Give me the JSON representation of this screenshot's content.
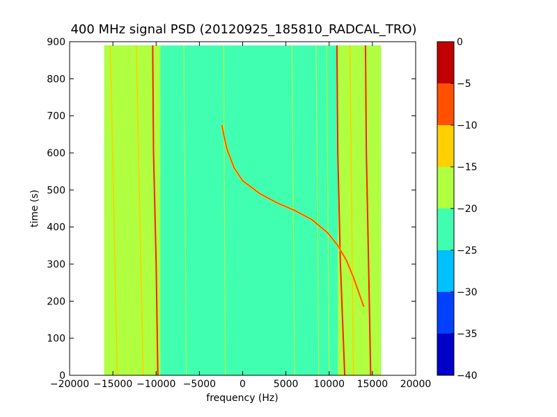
{
  "chart_data": {
    "type": "heatmap",
    "title": "400 MHz signal PSD (20120925_185810_RADCAL_TRO)",
    "xlabel": "frequency (Hz)",
    "ylabel": "time (s)",
    "xlim": [
      -20000,
      20000
    ],
    "ylim": [
      0,
      900
    ],
    "xticks": [
      -20000,
      -15000,
      -10000,
      -5000,
      0,
      5000,
      10000,
      15000,
      20000
    ],
    "xtick_labels": [
      "−20000",
      "−15000",
      "−10000",
      "−5000",
      "0",
      "5000",
      "10000",
      "15000",
      "20000"
    ],
    "yticks": [
      0,
      100,
      200,
      300,
      400,
      500,
      600,
      700,
      800,
      900
    ],
    "ytick_labels": [
      "0",
      "100",
      "200",
      "300",
      "400",
      "500",
      "600",
      "700",
      "800",
      "900"
    ],
    "data_extent": {
      "x": [
        -16000,
        16000
      ],
      "y": [
        0,
        890
      ]
    },
    "background_level_band": [
      -25,
      -20
    ],
    "outer_level_band": [
      -20,
      -15
    ],
    "colorbar": {
      "levels": [
        -40,
        -35,
        -30,
        -25,
        -20,
        -15,
        -10,
        -5,
        0
      ],
      "tick_labels": [
        "−40",
        "−35",
        "−30",
        "−25",
        "−20",
        "−15",
        "−10",
        "−5",
        "0"
      ],
      "colors": [
        "#0000c8",
        "#0040ff",
        "#00c0ff",
        "#40ffb0",
        "#b0ff40",
        "#ffd000",
        "#ff5000",
        "#c00000"
      ]
    },
    "outer_bands": [
      {
        "x": [
          -16000,
          -9500
        ],
        "y": [
          0,
          890
        ]
      },
      {
        "x": [
          11000,
          16000
        ],
        "y": [
          0,
          890
        ]
      }
    ],
    "tones": [
      {
        "level": "peak",
        "color": "#ff2000",
        "points": [
          [
            -9800,
            0
          ],
          [
            -10000,
            300
          ],
          [
            -10300,
            600
          ],
          [
            -10400,
            890
          ]
        ]
      },
      {
        "level": "peak",
        "color": "#ff2000",
        "points": [
          [
            11800,
            0
          ],
          [
            11300,
            300
          ],
          [
            11000,
            600
          ],
          [
            10900,
            890
          ]
        ]
      },
      {
        "level": "peak",
        "color": "#ff2000",
        "points": [
          [
            14800,
            0
          ],
          [
            14600,
            250
          ],
          [
            14300,
            600
          ],
          [
            14200,
            890
          ]
        ]
      },
      {
        "level": "high",
        "color": "#ffd000",
        "points": [
          [
            -11500,
            0
          ],
          [
            -11900,
            450
          ],
          [
            -12300,
            890
          ]
        ]
      },
      {
        "level": "high",
        "color": "#ffd000",
        "points": [
          [
            -14500,
            0
          ],
          [
            -14900,
            450
          ],
          [
            -15300,
            890
          ]
        ]
      },
      {
        "level": "high",
        "color": "#ffd000",
        "points": [
          [
            12800,
            0
          ],
          [
            12600,
            450
          ],
          [
            12400,
            890
          ]
        ]
      },
      {
        "level": "mid",
        "color": "#b0ff40",
        "points": [
          [
            -6500,
            0
          ],
          [
            -6800,
            890
          ]
        ]
      },
      {
        "level": "mid",
        "color": "#b0ff40",
        "points": [
          [
            -2000,
            0
          ],
          [
            -2200,
            890
          ]
        ]
      },
      {
        "level": "mid",
        "color": "#b0ff40",
        "points": [
          [
            6000,
            0
          ],
          [
            5700,
            890
          ]
        ]
      },
      {
        "level": "mid",
        "color": "#b0ff40",
        "points": [
          [
            8800,
            0
          ],
          [
            8500,
            890
          ]
        ]
      },
      {
        "level": "mid",
        "color": "#b0ff40",
        "points": [
          [
            10000,
            0
          ],
          [
            9700,
            890
          ]
        ]
      }
    ],
    "chirp": {
      "color": "#ff4000",
      "points": [
        [
          -2400,
          675
        ],
        [
          -2200,
          650
        ],
        [
          -1800,
          610
        ],
        [
          -1000,
          560
        ],
        [
          0,
          525
        ],
        [
          2000,
          490
        ],
        [
          4000,
          465
        ],
        [
          6000,
          445
        ],
        [
          8000,
          420
        ],
        [
          9800,
          385
        ],
        [
          11000,
          350
        ],
        [
          12000,
          310
        ],
        [
          12800,
          265
        ],
        [
          13400,
          225
        ],
        [
          14000,
          185
        ]
      ]
    }
  }
}
